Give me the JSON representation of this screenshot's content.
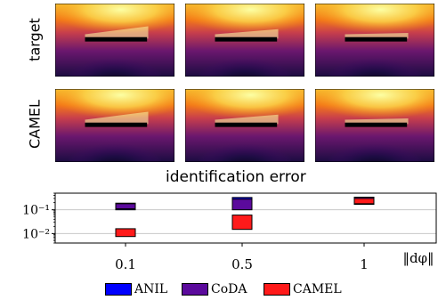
{
  "rows": [
    {
      "label": "target",
      "levels": [
        0.1,
        0.5,
        1
      ]
    },
    {
      "label": "CAMEL",
      "levels": [
        0.1,
        0.5,
        1
      ]
    }
  ],
  "colors": {
    "ANIL": "#0000ff",
    "CoDA": "#5b0a9c",
    "CAMEL": "#ff1a1a",
    "colormap": "inferno"
  },
  "chart_data": {
    "type": "bar",
    "title": "identification error",
    "xlabel": "‖dφ‖",
    "ylabel": "",
    "yscale": "log",
    "ylim": [
      0.004,
      0.5
    ],
    "yticks": [
      {
        "value": 0.1,
        "label": "10⁻¹"
      },
      {
        "value": 0.01,
        "label": "10⁻²"
      }
    ],
    "categories": [
      "0.1",
      "0.5",
      "1"
    ],
    "series": [
      {
        "name": "ANIL",
        "boxes": [
          [
            0.1,
            0.19
          ],
          [
            0.12,
            0.33
          ],
          [
            0.18,
            0.32
          ]
        ]
      },
      {
        "name": "CoDA",
        "boxes": [
          [
            0.11,
            0.18
          ],
          [
            0.1,
            0.28
          ],
          [
            0.17,
            0.34
          ]
        ]
      },
      {
        "name": "CAMEL",
        "boxes": [
          [
            0.0075,
            0.016
          ],
          [
            0.015,
            0.06
          ],
          [
            0.18,
            0.3
          ]
        ]
      }
    ],
    "legend": {
      "placement": "bottom",
      "entries": [
        "ANIL",
        "CoDA",
        "CAMEL"
      ]
    },
    "grid": true
  }
}
